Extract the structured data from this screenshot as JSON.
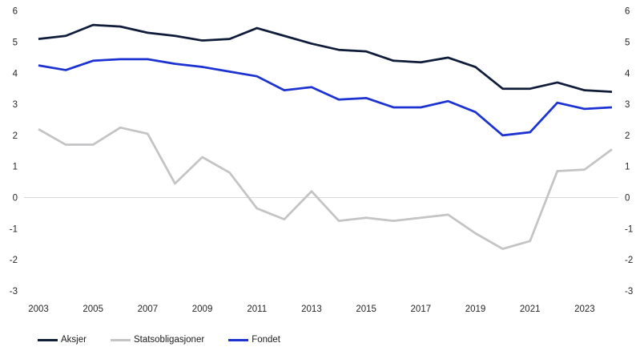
{
  "chart_data": {
    "type": "line",
    "title": "",
    "xlabel": "",
    "ylabel": "",
    "x": [
      2003,
      2004,
      2005,
      2006,
      2007,
      2008,
      2009,
      2010,
      2011,
      2012,
      2013,
      2014,
      2015,
      2016,
      2017,
      2018,
      2019,
      2020,
      2021,
      2022,
      2023,
      2024
    ],
    "series": [
      {
        "name": "Aksjer",
        "color": "#101d3a",
        "values": [
          5.1,
          5.2,
          5.55,
          5.5,
          5.3,
          5.2,
          5.05,
          5.1,
          5.45,
          5.2,
          4.95,
          4.75,
          4.7,
          4.4,
          4.35,
          4.5,
          4.2,
          3.5,
          3.5,
          3.7,
          3.45,
          3.4
        ]
      },
      {
        "name": "Statsobligasjoner",
        "color": "#c4c4c6",
        "values": [
          2.2,
          1.7,
          1.7,
          2.25,
          2.05,
          0.45,
          1.3,
          0.8,
          -0.35,
          -0.7,
          0.2,
          -0.75,
          -0.65,
          -0.75,
          -0.65,
          -0.55,
          -1.15,
          -1.65,
          -1.4,
          0.85,
          0.9,
          1.55
        ]
      },
      {
        "name": "Fondet",
        "color": "#1c33d1",
        "values": [
          4.25,
          4.1,
          4.4,
          4.45,
          4.45,
          4.3,
          4.2,
          4.05,
          3.9,
          3.45,
          3.55,
          3.15,
          3.2,
          2.9,
          2.9,
          3.1,
          2.75,
          2.0,
          2.1,
          3.05,
          2.85,
          2.9
        ]
      }
    ],
    "ylim": [
      -3,
      6
    ],
    "yticks": [
      6,
      5,
      4,
      3,
      2,
      1,
      0,
      -1,
      -2,
      -3
    ],
    "y_axis_sides": "both",
    "xticks": [
      2003,
      2005,
      2007,
      2009,
      2011,
      2013,
      2015,
      2017,
      2019,
      2021,
      2023
    ],
    "grid": "zero-line-only",
    "legend_position": "bottom-left",
    "legend": [
      "Aksjer",
      "Statsobligasjoner",
      "Fondet"
    ]
  },
  "style": {
    "background": "#ffffff",
    "zero_line_color": "#d9d9d9",
    "tick_label_color": "#262626",
    "legend_text_color": "#1a1a1a"
  }
}
